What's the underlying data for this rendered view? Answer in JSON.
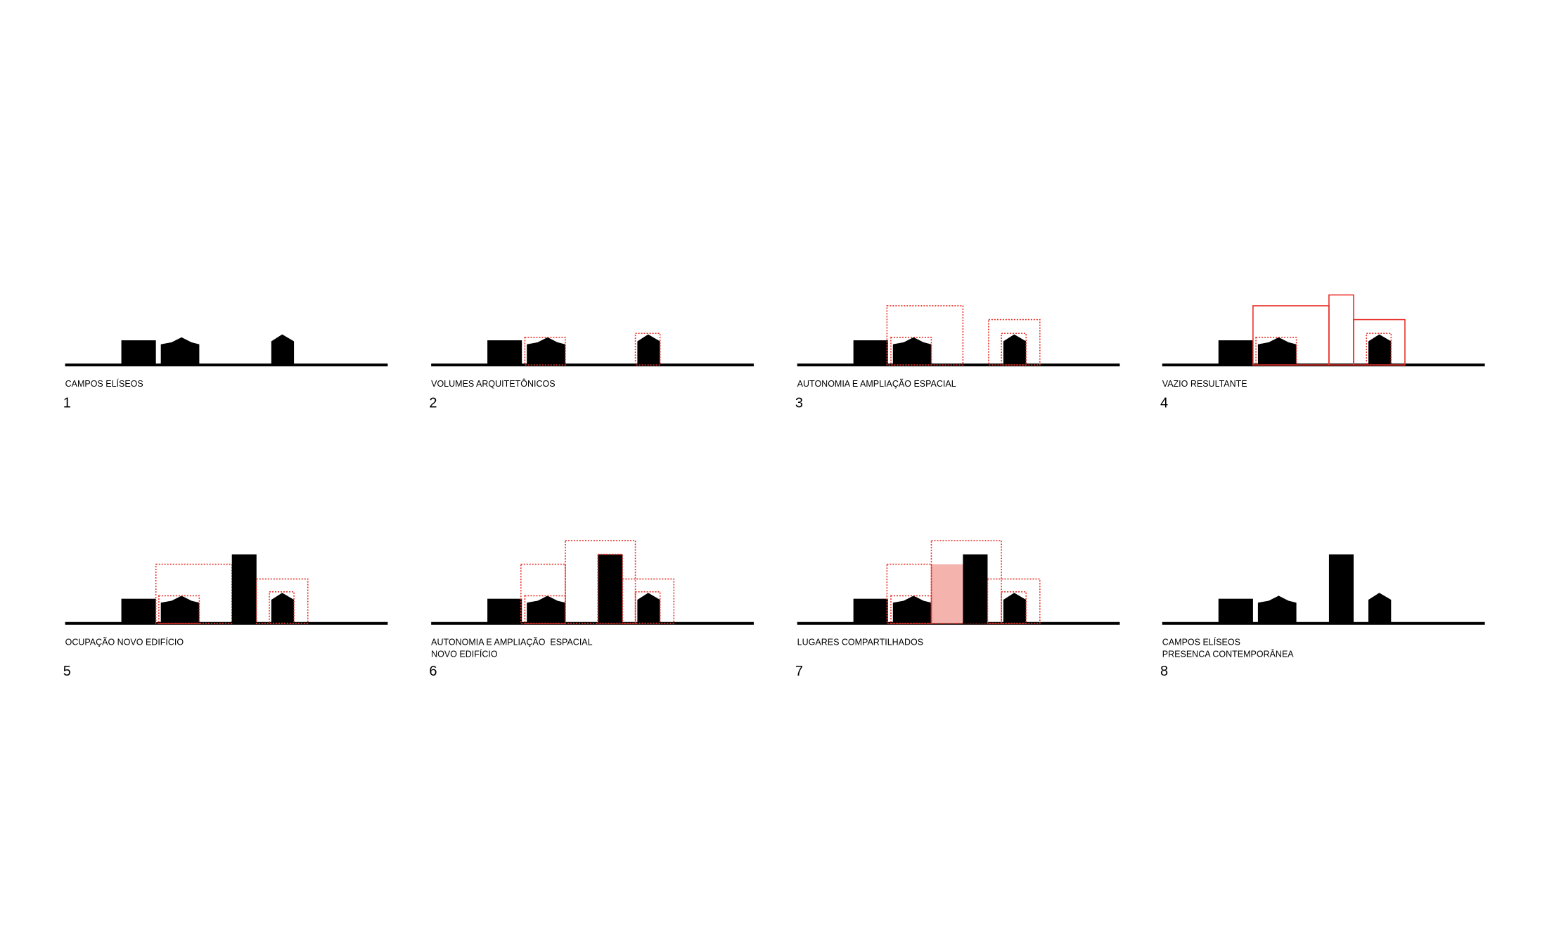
{
  "panels": [
    {
      "caption": [
        "CAMPOS ELÍSEOS"
      ],
      "number": "1"
    },
    {
      "caption": [
        "VOLUMES ARQUITETÔNICOS"
      ],
      "number": "2"
    },
    {
      "caption": [
        "AUTONOMIA E AMPLIAÇÃO ESPACIAL"
      ],
      "number": "3"
    },
    {
      "caption": [
        "VAZIO RESULTANTE"
      ],
      "number": "4"
    },
    {
      "caption": [
        "OCUPAÇÃO NOVO EDIFÍCIO"
      ],
      "number": "5"
    },
    {
      "caption": [
        "AUTONOMIA E AMPLIAÇÃO  ESPACIAL",
        "NOVO EDIFÍCIO"
      ],
      "number": "6"
    },
    {
      "caption": [
        "LUGARES COMPARTILHADOS"
      ],
      "number": "7"
    },
    {
      "caption": [
        "CAMPOS ELÍSEOS",
        "PRESENCA CONTEMPORÂNEA"
      ],
      "number": "8"
    }
  ]
}
